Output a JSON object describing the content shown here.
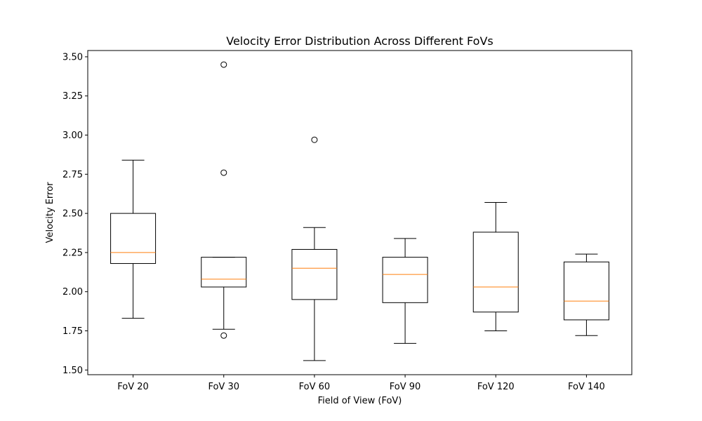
{
  "chart_data": {
    "type": "box",
    "title": "Velocity Error Distribution Across Different FoVs",
    "xlabel": "Field of View (FoV)",
    "ylabel": "Velocity Error",
    "ylim": [
      1.47,
      3.54
    ],
    "yticks": [
      "1.50",
      "1.75",
      "2.00",
      "2.25",
      "2.50",
      "2.75",
      "3.00",
      "3.25",
      "3.50"
    ],
    "grid": false,
    "colors": {
      "box": "#000000",
      "median": "#ff7f0e",
      "outlier": "#000000"
    },
    "categories": [
      "FoV 20",
      "FoV 30",
      "FoV 60",
      "FoV 90",
      "FoV 120",
      "FoV 140"
    ],
    "boxes": [
      {
        "whisker_low": 1.83,
        "q1": 2.18,
        "median": 2.25,
        "q3": 2.5,
        "whisker_high": 2.84,
        "outliers": []
      },
      {
        "whisker_low": 1.76,
        "q1": 2.03,
        "median": 2.08,
        "q3": 2.22,
        "whisker_high": 2.22,
        "outliers": [
          1.72,
          2.76,
          3.45
        ]
      },
      {
        "whisker_low": 1.56,
        "q1": 1.95,
        "median": 2.15,
        "q3": 2.27,
        "whisker_high": 2.41,
        "outliers": [
          2.97
        ]
      },
      {
        "whisker_low": 1.67,
        "q1": 1.93,
        "median": 2.11,
        "q3": 2.22,
        "whisker_high": 2.34,
        "outliers": []
      },
      {
        "whisker_low": 1.75,
        "q1": 1.87,
        "median": 2.03,
        "q3": 2.38,
        "whisker_high": 2.57,
        "outliers": []
      },
      {
        "whisker_low": 1.72,
        "q1": 1.82,
        "median": 1.94,
        "q3": 2.19,
        "whisker_high": 2.24,
        "outliers": []
      }
    ]
  }
}
